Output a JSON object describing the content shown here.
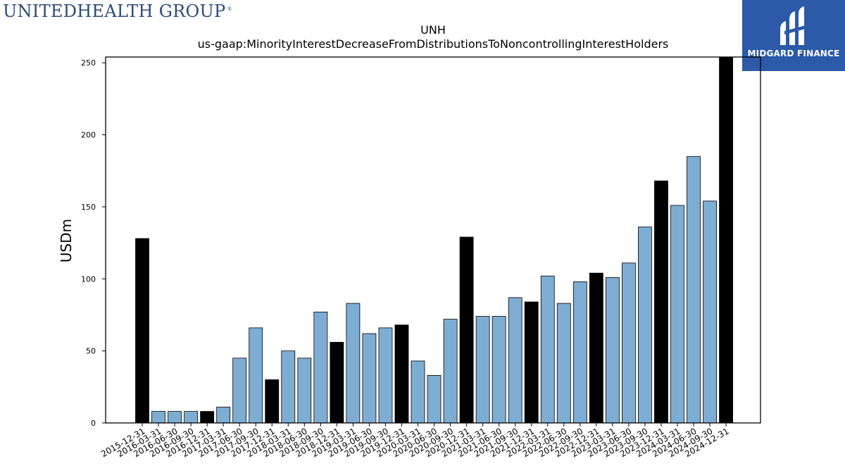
{
  "company_logo": {
    "text": "UNITEDHEALTH GROUP",
    "registered": "®"
  },
  "brand": {
    "name": "MIDGARD FINANCE",
    "logo_icon": "midgard-m-logo"
  },
  "chart_data": {
    "type": "bar",
    "title": "UNH",
    "subtitle": "us-gaap:MinorityInterestDecreaseFromDistributionsToNoncontrollingInterestHolders",
    "xlabel": "",
    "ylabel": "USDm",
    "ylim": [
      0,
      254
    ],
    "yticks": [
      0,
      50,
      100,
      150,
      200,
      250
    ],
    "grid": false,
    "colors": {
      "quarter": "#7eadd3",
      "year_end": "#000000"
    },
    "categories": [
      "2015-12-31",
      "2016-03-31",
      "2016-06-30",
      "2016-09-30",
      "2016-12-31",
      "2017-03-31",
      "2017-06-30",
      "2017-09-30",
      "2017-12-31",
      "2018-03-31",
      "2018-06-30",
      "2018-09-30",
      "2018-12-31",
      "2019-03-31",
      "2019-06-30",
      "2019-09-30",
      "2019-12-31",
      "2020-03-31",
      "2020-06-30",
      "2020-09-30",
      "2020-12-31",
      "2021-03-31",
      "2021-06-30",
      "2021-09-30",
      "2021-12-31",
      "2022-03-31",
      "2022-06-30",
      "2022-09-30",
      "2022-12-31",
      "2023-03-31",
      "2023-06-30",
      "2023-09-30",
      "2023-12-31",
      "2024-03-31",
      "2024-06-30",
      "2024-09-30",
      "2024-12-31"
    ],
    "values": [
      128,
      8,
      8,
      8,
      8,
      11,
      45,
      66,
      30,
      50,
      45,
      77,
      56,
      83,
      62,
      66,
      68,
      43,
      33,
      72,
      129,
      74,
      74,
      87,
      84,
      102,
      83,
      98,
      104,
      101,
      111,
      136,
      168,
      151,
      185,
      154,
      254
    ]
  }
}
